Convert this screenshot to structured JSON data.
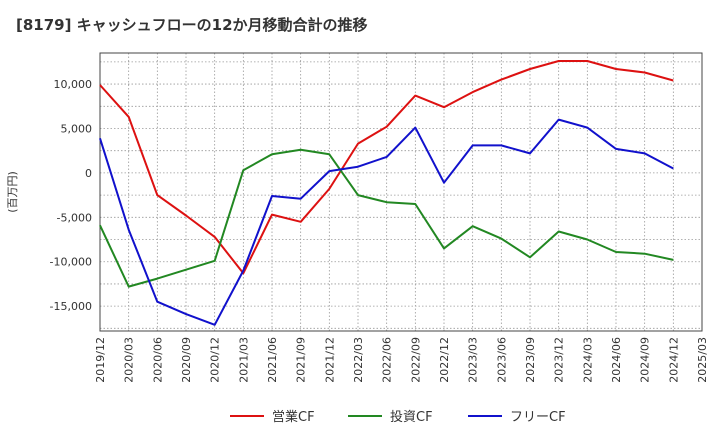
{
  "chart_data": {
    "type": "line",
    "title": "[8179]  キャッシュフローの12か月移動合計の推移",
    "ylabel": "(百万円)",
    "xlabel": "",
    "ylim": [
      -17800,
      13500
    ],
    "yticks": [
      10000,
      5000,
      0,
      -5000,
      -10000,
      -15000
    ],
    "ytick_labels": [
      "10,000",
      "5,000",
      "0",
      "-5,000",
      "-10,000",
      "-15,000"
    ],
    "categories": [
      "2019/12",
      "2020/03",
      "2020/06",
      "2020/09",
      "2020/12",
      "2021/03",
      "2021/06",
      "2021/09",
      "2021/12",
      "2022/03",
      "2022/06",
      "2022/09",
      "2022/12",
      "2023/03",
      "2023/06",
      "2023/09",
      "2023/12",
      "2024/03",
      "2024/06",
      "2024/09",
      "2024/12",
      "2025/03"
    ],
    "grid": true,
    "legend_position": "bottom",
    "series": [
      {
        "name": "営業CF",
        "color": "#dd1111",
        "values": [
          9900,
          6300,
          -2500,
          -4800,
          -7200,
          -11300,
          -4700,
          -5500,
          -1800,
          3300,
          5200,
          8700,
          7400,
          9100,
          10500,
          11700,
          12600,
          12600,
          11700,
          11300,
          10400,
          null
        ]
      },
      {
        "name": "投資CF",
        "color": "#228822",
        "values": [
          -5900,
          -12800,
          -11900,
          -10900,
          -9900,
          300,
          2100,
          2600,
          2100,
          -2500,
          -3300,
          -3500,
          -8500,
          -6000,
          -7400,
          -9500,
          -6600,
          -7500,
          -8900,
          -9100,
          -9800,
          null
        ]
      },
      {
        "name": "フリーCF",
        "color": "#1111cc",
        "values": [
          3900,
          -6400,
          -14500,
          -15900,
          -17100,
          -11000,
          -2600,
          -2900,
          200,
          700,
          1800,
          5100,
          -1100,
          3100,
          3100,
          2200,
          6000,
          5100,
          2700,
          2200,
          500,
          null
        ]
      }
    ]
  }
}
